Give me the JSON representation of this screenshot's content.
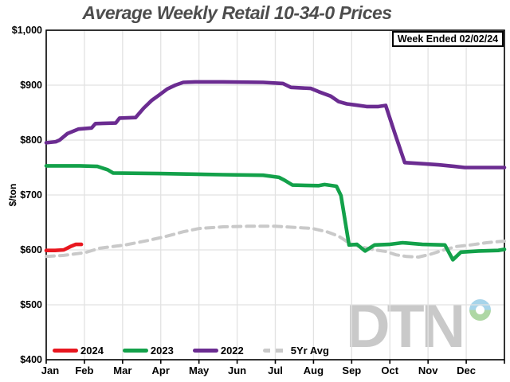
{
  "title": "Average Weekly Retail 10-34-0 Prices",
  "week_ended": "Week Ended 02/02/24",
  "y_axis_title": "$/ton",
  "logo_text": "DTN",
  "colors": {
    "grid": "#e2e2e2",
    "axis": "#000000",
    "title_text": "#4d4d4d",
    "logo_gray": "#c9c9c9",
    "logo_ring_blue": "#a7d4ea",
    "logo_ring_green": "#aed7a4",
    "background": "#ffffff"
  },
  "chart_data": {
    "type": "line",
    "title": "Average Weekly Retail 10-34-0 Prices",
    "xlabel": "",
    "ylabel": "$/ton",
    "x_categories": [
      "Jan",
      "Feb",
      "Mar",
      "Apr",
      "May",
      "Jun",
      "Jul",
      "Aug",
      "Sep",
      "Oct",
      "Nov",
      "Dec"
    ],
    "x_unit": "months-from-Jan-start (0..12), weekly data",
    "ylim": [
      400,
      1000
    ],
    "y_ticks": [
      {
        "label": "$1,000",
        "value": 1000
      },
      {
        "label": "$900",
        "value": 900
      },
      {
        "label": "$800",
        "value": 800
      },
      {
        "label": "$700",
        "value": 700
      },
      {
        "label": "$600",
        "value": 600
      },
      {
        "label": "$500",
        "value": 500
      },
      {
        "label": "$400",
        "value": 400
      }
    ],
    "grid": true,
    "legend_position": "bottom-inside",
    "annotation": "Week Ended 02/02/24",
    "series": [
      {
        "name": "2024",
        "color": "#e8171f",
        "dashed": false,
        "points": [
          [
            0,
            599
          ],
          [
            0.23,
            599
          ],
          [
            0.46,
            600
          ],
          [
            0.63,
            606
          ],
          [
            0.77,
            610
          ],
          [
            0.92,
            610
          ]
        ]
      },
      {
        "name": "2023",
        "color": "#13a14a",
        "dashed": false,
        "points": [
          [
            0,
            753
          ],
          [
            0.88,
            753
          ],
          [
            1.34,
            752
          ],
          [
            1.61,
            746
          ],
          [
            1.75,
            740
          ],
          [
            2.96,
            739
          ],
          [
            4.63,
            737
          ],
          [
            5.68,
            736
          ],
          [
            6.1,
            732
          ],
          [
            6.24,
            727
          ],
          [
            6.45,
            718
          ],
          [
            7.14,
            717
          ],
          [
            7.29,
            719
          ],
          [
            7.6,
            716
          ],
          [
            7.72,
            699
          ],
          [
            7.93,
            609
          ],
          [
            8.14,
            610
          ],
          [
            8.35,
            598
          ],
          [
            8.6,
            609
          ],
          [
            8.98,
            610
          ],
          [
            9.33,
            613
          ],
          [
            9.85,
            610
          ],
          [
            10.44,
            609
          ],
          [
            10.65,
            582
          ],
          [
            10.86,
            596
          ],
          [
            11.32,
            598
          ],
          [
            11.84,
            599
          ],
          [
            12,
            601
          ]
        ]
      },
      {
        "name": "2022",
        "color": "#6b2c91",
        "dashed": false,
        "points": [
          [
            0,
            795
          ],
          [
            0.25,
            797
          ],
          [
            0.35,
            800
          ],
          [
            0.56,
            812
          ],
          [
            0.84,
            820
          ],
          [
            1.19,
            822
          ],
          [
            1.29,
            830
          ],
          [
            1.82,
            831
          ],
          [
            1.92,
            840
          ],
          [
            2.34,
            841
          ],
          [
            2.55,
            858
          ],
          [
            2.76,
            872
          ],
          [
            2.96,
            882
          ],
          [
            3.17,
            893
          ],
          [
            3.38,
            900
          ],
          [
            3.59,
            905
          ],
          [
            3.9,
            906
          ],
          [
            4.63,
            906
          ],
          [
            5.68,
            905
          ],
          [
            6.2,
            903
          ],
          [
            6.41,
            896
          ],
          [
            6.93,
            894
          ],
          [
            7.14,
            888
          ],
          [
            7.45,
            880
          ],
          [
            7.66,
            870
          ],
          [
            7.87,
            866
          ],
          [
            8.08,
            864
          ],
          [
            8.39,
            861
          ],
          [
            8.7,
            861
          ],
          [
            8.89,
            863
          ],
          [
            9.14,
            810
          ],
          [
            9.39,
            759
          ],
          [
            9.85,
            757
          ],
          [
            10.27,
            755
          ],
          [
            10.69,
            752
          ],
          [
            10.96,
            750
          ],
          [
            12,
            750
          ]
        ]
      },
      {
        "name": "5Yr Avg",
        "color": "#c9c9c9",
        "dashed": true,
        "points": [
          [
            0,
            588
          ],
          [
            0.46,
            590
          ],
          [
            1.02,
            595
          ],
          [
            1.4,
            603
          ],
          [
            2.07,
            609
          ],
          [
            2.65,
            617
          ],
          [
            3.11,
            624
          ],
          [
            3.59,
            633
          ],
          [
            4.01,
            639
          ],
          [
            4.63,
            642
          ],
          [
            5.26,
            643
          ],
          [
            5.99,
            643
          ],
          [
            6.51,
            641
          ],
          [
            6.97,
            639
          ],
          [
            7.35,
            633
          ],
          [
            7.66,
            625
          ],
          [
            7.97,
            611
          ],
          [
            8.29,
            605
          ],
          [
            8.6,
            600
          ],
          [
            8.91,
            597
          ],
          [
            9.16,
            591
          ],
          [
            9.44,
            588
          ],
          [
            9.75,
            587
          ],
          [
            10.06,
            592
          ],
          [
            10.42,
            600
          ],
          [
            10.73,
            606
          ],
          [
            11.11,
            609
          ],
          [
            11.53,
            613
          ],
          [
            11.84,
            615
          ],
          [
            12,
            616
          ]
        ]
      }
    ]
  }
}
